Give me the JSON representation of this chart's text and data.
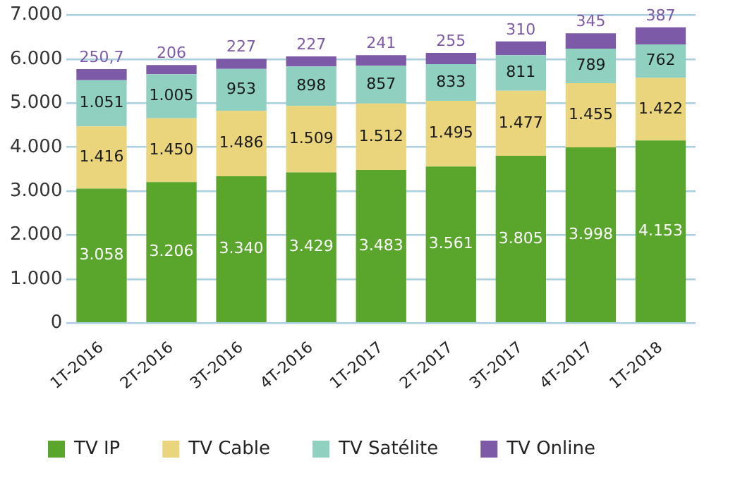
{
  "chart_data": {
    "type": "bar",
    "stacked": true,
    "categories": [
      "1T-2016",
      "2T-2016",
      "3T-2016",
      "4T-2016",
      "1T-2017",
      "2T-2017",
      "3T-2017",
      "4T-2017",
      "1T-2018"
    ],
    "series": [
      {
        "name": "TV IP",
        "color": "#5aa62c",
        "values": [
          3058,
          3206,
          3340,
          3429,
          3483,
          3561,
          3805,
          3998,
          4153
        ],
        "value_labels": [
          "3.058",
          "3.206",
          "3.340",
          "3.429",
          "3.483",
          "3.561",
          "3.805",
          "3.998",
          "4.153"
        ]
      },
      {
        "name": "TV Cable",
        "color": "#ead47c",
        "values": [
          1416,
          1450,
          1486,
          1509,
          1512,
          1495,
          1477,
          1455,
          1422
        ],
        "value_labels": [
          "1.416",
          "1.450",
          "1.486",
          "1.509",
          "1.512",
          "1.495",
          "1.477",
          "1.455",
          "1.422"
        ]
      },
      {
        "name": "TV Satélite",
        "color": "#8fd0c0",
        "values": [
          1051,
          1005,
          953,
          898,
          857,
          833,
          811,
          789,
          762
        ],
        "value_labels": [
          "1.051",
          "1.005",
          "953",
          "898",
          "857",
          "833",
          "811",
          "789",
          "762"
        ]
      },
      {
        "name": "TV Online",
        "color": "#7d5aa8",
        "values": [
          250.7,
          206,
          227,
          227,
          241,
          255,
          310,
          345,
          387
        ],
        "value_labels": [
          "250,7",
          "206",
          "227",
          "227",
          "241",
          "255",
          "310",
          "345",
          "387"
        ]
      }
    ],
    "ylim": [
      0,
      7000
    ],
    "yticks": [
      {
        "value": 0,
        "label": "0"
      },
      {
        "value": 1000,
        "label": "1.000"
      },
      {
        "value": 2000,
        "label": "2.000"
      },
      {
        "value": 3000,
        "label": "3.000"
      },
      {
        "value": 4000,
        "label": "4.000"
      },
      {
        "value": 5000,
        "label": "5.000"
      },
      {
        "value": 6000,
        "label": "6.000"
      },
      {
        "value": 7000,
        "label": "7.000"
      }
    ],
    "grid": "y",
    "legend": "bottom"
  }
}
